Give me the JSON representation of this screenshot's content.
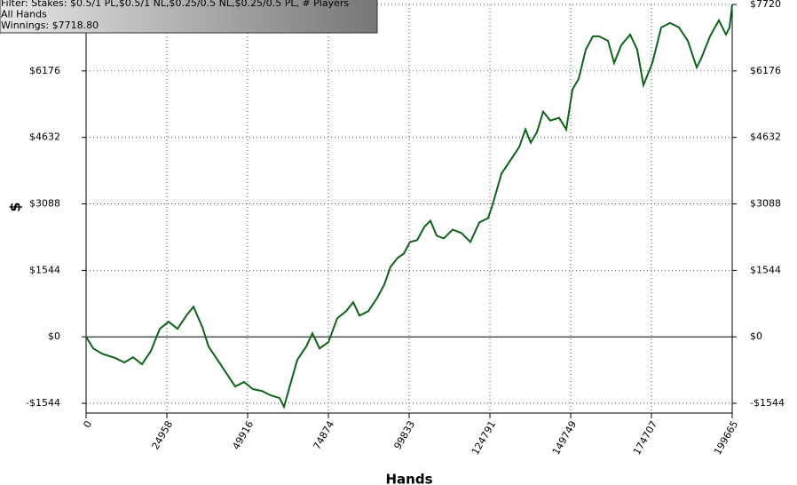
{
  "chart_data": {
    "type": "line",
    "info": [
      "Filter: Stakes: $0.5/1 PL,$0.5/1 NL,$0.25/0.5 NL,$0.25/0.5 PL, # Players",
      "All Hands",
      "Winnings: $7718.80"
    ],
    "x_label": "Hands",
    "y_label": "$",
    "xlim": [
      0,
      199665
    ],
    "xticks": [
      0,
      24958,
      49916,
      74874,
      99833,
      124791,
      149749,
      174707,
      199665
    ],
    "ylim": [
      -1770,
      7720
    ],
    "yticks": [
      {
        "value": -1544,
        "label": "-$1544"
      },
      {
        "value": 0,
        "label": "$0"
      },
      {
        "value": 1544,
        "label": "$1544"
      },
      {
        "value": 3088,
        "label": "$3088"
      },
      {
        "value": 4632,
        "label": "$4632"
      },
      {
        "value": 6176,
        "label": "$6176"
      },
      {
        "value": 7720,
        "label": "$7720"
      }
    ],
    "grid": true,
    "color": "#0b6418",
    "x": [
      0,
      2194,
      4937,
      9051,
      11793,
      14536,
      17278,
      20021,
      22764,
      25506,
      28249,
      30991,
      33185,
      35928,
      37848,
      40590,
      43333,
      46076,
      48818,
      51561,
      54303,
      57046,
      59789,
      61160,
      62531,
      65274,
      68016,
      69936,
      72130,
      74873,
      77616,
      80358,
      82552,
      84472,
      87215,
      89957,
      92151,
      94071,
      96265,
      98185,
      100105,
      102299,
      104493,
      106413,
      108333,
      110527,
      113269,
      116012,
      118755,
      121497,
      124240,
      125611,
      128354,
      131096,
      133839,
      135759,
      137404,
      139324,
      141244,
      143438,
      146181,
      148375,
      150294,
      152214,
      154408,
      156602,
      158522,
      161265,
      163185,
      165379,
      168121,
      170315,
      172235,
      174978,
      177720,
      180463,
      183206,
      185948,
      188691,
      190062,
      192805,
      195547,
      197741,
      198838,
      199665
    ],
    "values": [
      0,
      -268,
      -391,
      -494,
      -597,
      -474,
      -638,
      -329,
      185,
      350,
      185,
      494,
      700,
      226,
      -226,
      -535,
      -844,
      -1153,
      -1050,
      -1215,
      -1256,
      -1359,
      -1421,
      -1626,
      -1256,
      -535,
      -226,
      82,
      -268,
      -124,
      432,
      597,
      803,
      494,
      597,
      906,
      1215,
      1626,
      1832,
      1935,
      2203,
      2244,
      2553,
      2697,
      2347,
      2285,
      2491,
      2409,
      2203,
      2656,
      2759,
      3067,
      3788,
      4097,
      4406,
      4817,
      4509,
      4756,
      5229,
      5023,
      5085,
      4817,
      5744,
      5991,
      6670,
      6979,
      6979,
      6876,
      6361,
      6773,
      7020,
      6670,
      5847,
      6361,
      7185,
      7288,
      7185,
      6876,
      6258,
      6464,
      6979,
      7350,
      7020,
      7185,
      7719
    ]
  }
}
